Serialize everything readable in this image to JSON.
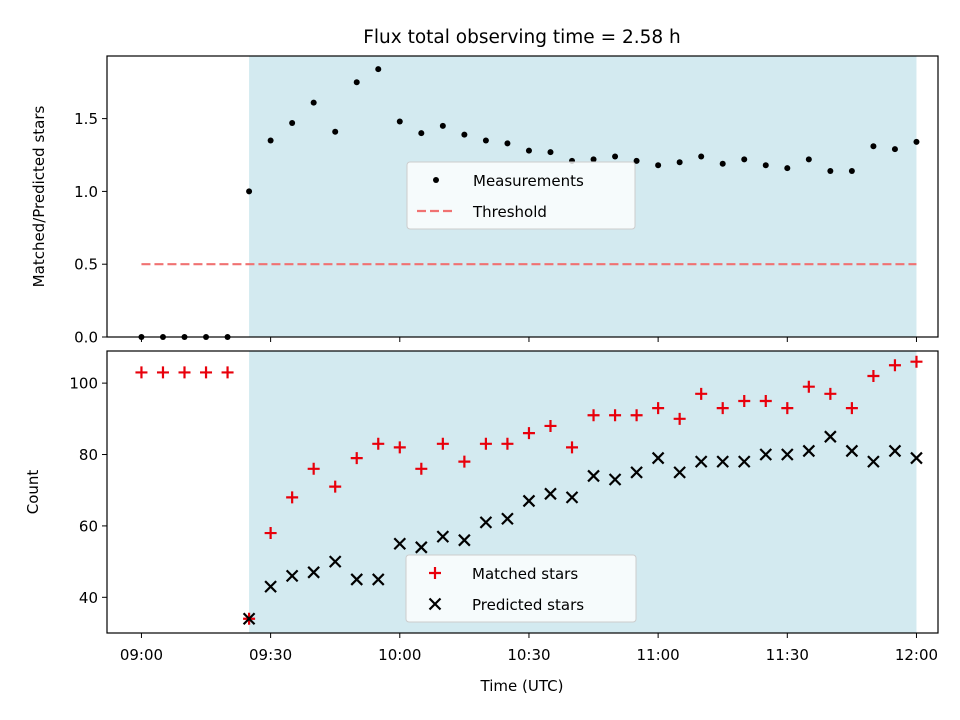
{
  "figure": {
    "title": "Flux total observing time = 2.58 h",
    "xlabel": "Time (UTC)",
    "x_ticks": [
      "09:00",
      "09:30",
      "10:00",
      "10:30",
      "11:00",
      "11:30",
      "12:00"
    ]
  },
  "chart_data": [
    {
      "type": "scatter",
      "title": "Flux total observing time = 2.58 h",
      "ylabel": "Matched/Predicted stars",
      "xlim": [
        "08:52",
        "12:05"
      ],
      "ylim": [
        0,
        1.93
      ],
      "y_ticks": [
        "0.0",
        "0.5",
        "1.0",
        "1.5"
      ],
      "shaded_interval": {
        "from": "09:25",
        "to": "12:00",
        "color": "#d3eaf0"
      },
      "legend_position": "center",
      "series": [
        {
          "name": "Measurements",
          "marker": "dot",
          "color": "#000000",
          "x": [
            "09:00",
            "09:05",
            "09:10",
            "09:15",
            "09:20",
            "09:25",
            "09:30",
            "09:35",
            "09:40",
            "09:45",
            "09:50",
            "09:55",
            "10:00",
            "10:05",
            "10:10",
            "10:15",
            "10:20",
            "10:25",
            "10:30",
            "10:35",
            "10:40",
            "10:45",
            "10:50",
            "10:55",
            "11:00",
            "11:05",
            "11:10",
            "11:15",
            "11:20",
            "11:25",
            "11:30",
            "11:35",
            "11:40",
            "11:45",
            "11:50",
            "11:55",
            "12:00"
          ],
          "y": [
            0,
            0,
            0,
            0,
            0,
            1.0,
            1.35,
            1.47,
            1.61,
            1.41,
            1.75,
            1.84,
            1.48,
            1.4,
            1.45,
            1.39,
            1.35,
            1.33,
            1.28,
            1.27,
            1.21,
            1.22,
            1.24,
            1.21,
            1.18,
            1.2,
            1.24,
            1.19,
            1.22,
            1.18,
            1.16,
            1.22,
            1.14,
            1.14,
            1.31,
            1.29,
            1.34
          ]
        },
        {
          "name": "Threshold",
          "line": "dashed",
          "color": "#f07272",
          "x": [
            "09:00",
            "12:00"
          ],
          "y": [
            0.5,
            0.5
          ]
        }
      ]
    },
    {
      "type": "scatter",
      "xlabel": "Time (UTC)",
      "ylabel": "Count",
      "xlim": [
        "08:52",
        "12:05"
      ],
      "ylim": [
        30,
        109
      ],
      "y_ticks": [
        "40",
        "60",
        "80",
        "100"
      ],
      "shaded_interval": {
        "from": "09:25",
        "to": "12:00",
        "color": "#d3eaf0"
      },
      "legend_position": "lower center",
      "series": [
        {
          "name": "Matched stars",
          "marker": "plus",
          "color": "#e8000b",
          "x": [
            "09:00",
            "09:05",
            "09:10",
            "09:15",
            "09:20",
            "09:25",
            "09:30",
            "09:35",
            "09:40",
            "09:45",
            "09:50",
            "09:55",
            "10:00",
            "10:05",
            "10:10",
            "10:15",
            "10:20",
            "10:25",
            "10:30",
            "10:35",
            "10:40",
            "10:45",
            "10:50",
            "10:55",
            "11:00",
            "11:05",
            "11:10",
            "11:15",
            "11:20",
            "11:25",
            "11:30",
            "11:35",
            "11:40",
            "11:45",
            "11:50",
            "11:55",
            "12:00"
          ],
          "y": [
            103,
            103,
            103,
            103,
            103,
            34,
            58,
            68,
            76,
            71,
            79,
            83,
            82,
            76,
            83,
            78,
            83,
            83,
            86,
            88,
            82,
            91,
            91,
            91,
            93,
            90,
            97,
            93,
            95,
            95,
            93,
            99,
            97,
            93,
            102,
            105,
            106
          ]
        },
        {
          "name": "Predicted stars",
          "marker": "x",
          "color": "#000000",
          "x": [
            "09:25",
            "09:30",
            "09:35",
            "09:40",
            "09:45",
            "09:50",
            "09:55",
            "10:00",
            "10:05",
            "10:10",
            "10:15",
            "10:20",
            "10:25",
            "10:30",
            "10:35",
            "10:40",
            "10:45",
            "10:50",
            "10:55",
            "11:00",
            "11:05",
            "11:10",
            "11:15",
            "11:20",
            "11:25",
            "11:30",
            "11:35",
            "11:40",
            "11:45",
            "11:50",
            "11:55",
            "12:00"
          ],
          "y": [
            34,
            43,
            46,
            47,
            50,
            45,
            45,
            55,
            54,
            57,
            56,
            61,
            62,
            67,
            69,
            68,
            74,
            73,
            75,
            79,
            75,
            78,
            78,
            78,
            80,
            80,
            81,
            85,
            81,
            78,
            81,
            79
          ]
        }
      ]
    }
  ]
}
